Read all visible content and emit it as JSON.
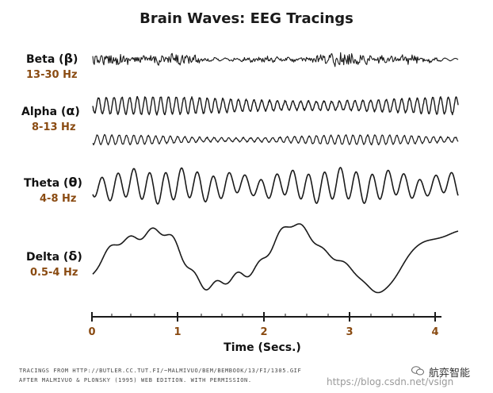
{
  "title": "Brain Waves: EEG Tracings",
  "bands": [
    {
      "name": "Beta",
      "symbol": "β",
      "freq": "13-30 Hz"
    },
    {
      "name": "Alpha",
      "symbol": "α",
      "freq": "8-13 Hz"
    },
    {
      "name": "Theta",
      "symbol": "θ",
      "freq": "4-8 Hz"
    },
    {
      "name": "Delta",
      "symbol": "δ",
      "freq": "0.5-4 Hz"
    }
  ],
  "axis": {
    "title": "Time (Secs.)",
    "ticks": [
      "0",
      "1",
      "2",
      "3",
      "4"
    ]
  },
  "credit": {
    "line1": "Tracings from http://butler.cc.tut.fi/~malmivuo/bem/bembook/13/fi/1305.gif",
    "line2": "After Malmivuo & Plonsky (1995) Web Edition. With permission."
  },
  "watermark": {
    "brand": "航弈智能",
    "url": "https://blog.csdn.net/vsign"
  },
  "colors": {
    "label": "#111111",
    "freq": "#8a4b12",
    "trace": "#1a1a1a"
  }
}
